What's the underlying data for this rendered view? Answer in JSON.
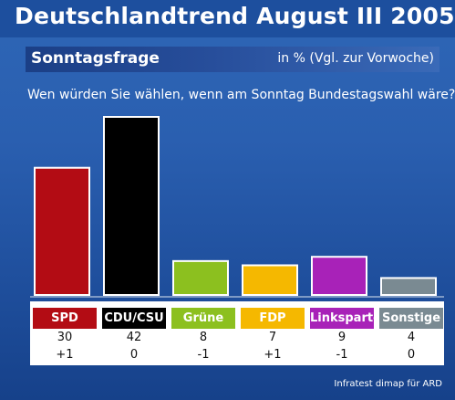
{
  "header": {
    "title": "Deutschlandtrend August III 2005"
  },
  "subheader": {
    "left": "Sonntagsfrage",
    "right": "in % (Vgl. zur Vorwoche)"
  },
  "question": "Wen würden Sie wählen, wenn am Sonntag Bundestagswahl wäre?",
  "source": "Infratest dimap für ARD",
  "chart_data": {
    "type": "bar",
    "categories": [
      "SPD",
      "CDU/CSU",
      "Grüne",
      "FDP",
      "Linkspartei",
      "Sonstige"
    ],
    "values": [
      30,
      42,
      8,
      7,
      9,
      4
    ],
    "changes": [
      "+1",
      "0",
      "-1",
      "+1",
      "-1",
      "0"
    ],
    "colors": [
      "#b30c14",
      "#000000",
      "#8cc01f",
      "#f5b800",
      "#a822b8",
      "#7a8a92"
    ],
    "title": "Sonntagsfrage",
    "xlabel": "",
    "ylabel": "",
    "ylim": [
      0,
      42
    ]
  }
}
